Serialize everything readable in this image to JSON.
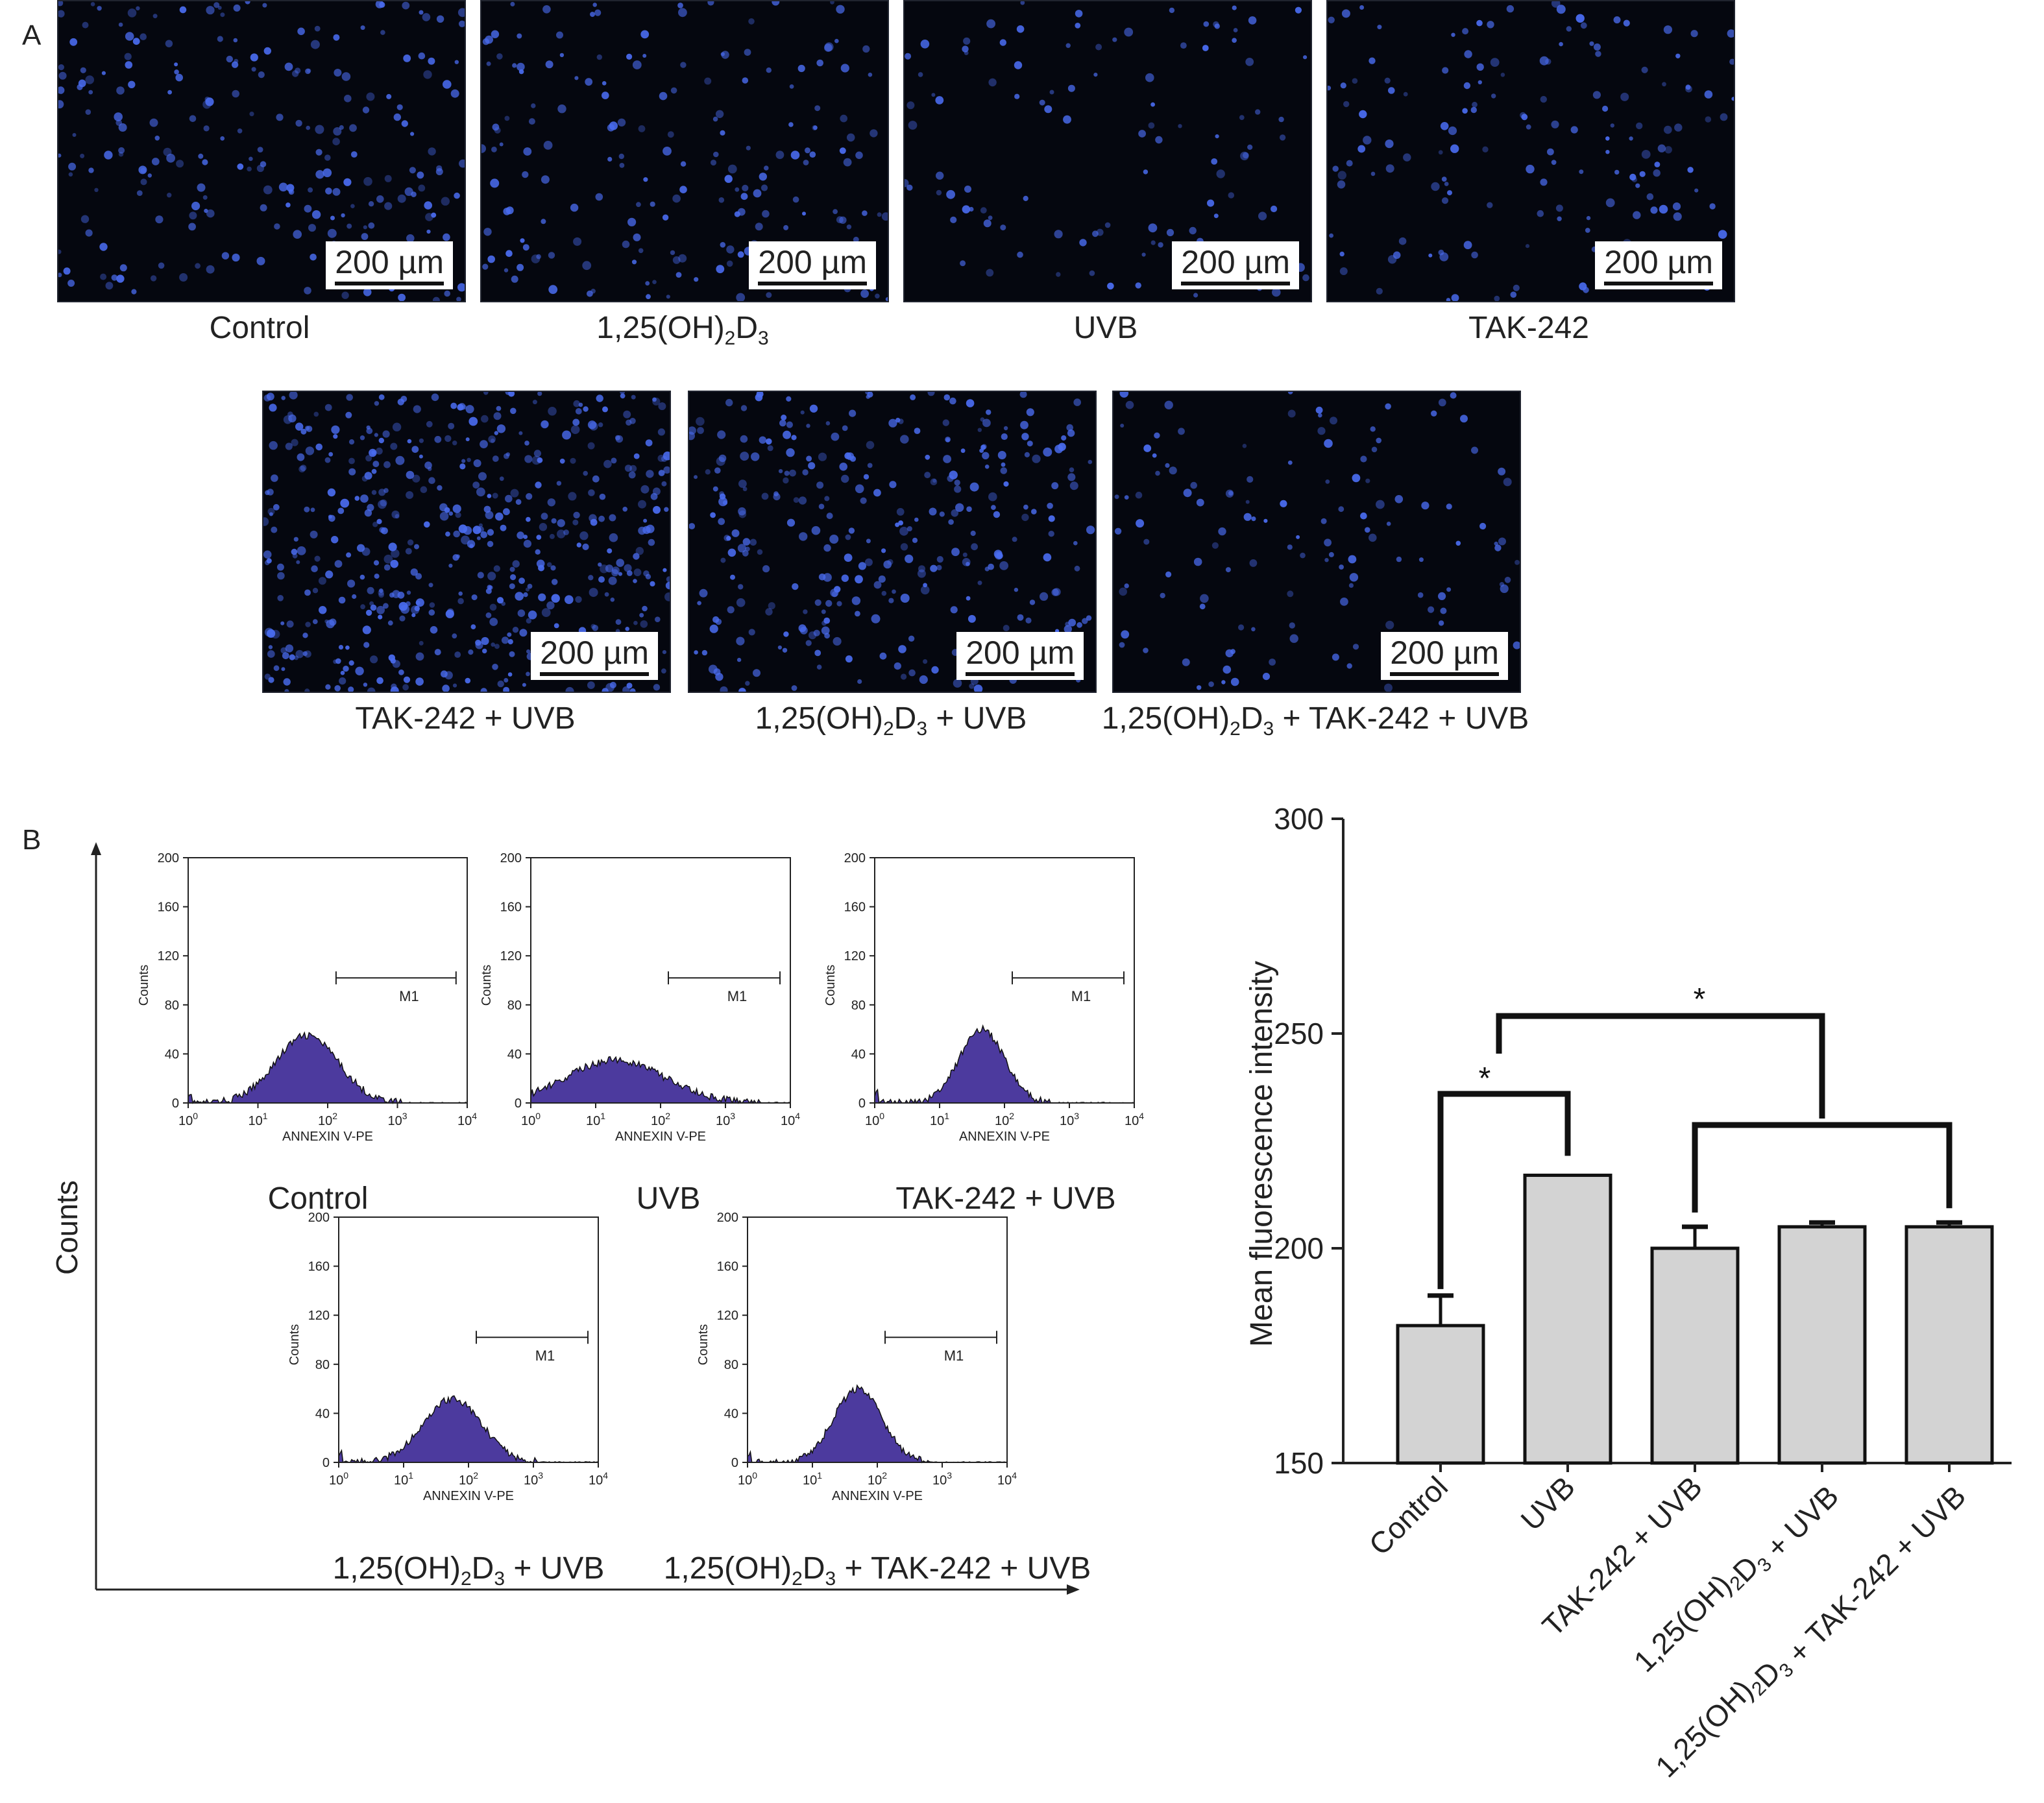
{
  "panels": {
    "a_label": "A",
    "b_label": "B"
  },
  "scale_bar_text": "200 µm",
  "micrographs": [
    {
      "name": "Control",
      "cap_main": "Control",
      "cap_sub": "",
      "cap_tail": ""
    },
    {
      "name": "1,25(OH)2D3",
      "cap_main": "1,25(OH)",
      "cap_sub": "2",
      "cap_tail": "D",
      "cap_sub2": "3",
      "cap_tail2": ""
    },
    {
      "name": "UVB",
      "cap_main": "UVB",
      "cap_sub": "",
      "cap_tail": ""
    },
    {
      "name": "TAK-242",
      "cap_main": "TAK-242",
      "cap_sub": "",
      "cap_tail": ""
    },
    {
      "name": "TAK-242 + UVB",
      "cap_main": "TAK-242 + UVB",
      "cap_sub": "",
      "cap_tail": ""
    },
    {
      "name": "1,25(OH)2D3 + UVB",
      "cap_main": "1,25(OH)",
      "cap_sub": "2",
      "cap_tail": "D",
      "cap_sub2": "3",
      "cap_tail2": " + UVB"
    },
    {
      "name": "1,25(OH)2D3 + TAK-242 + UVB",
      "cap_main": "1,25(OH)",
      "cap_sub": "2",
      "cap_tail": "D",
      "cap_sub2": "3",
      "cap_tail2": " + TAK-242 + UVB"
    }
  ],
  "flow": {
    "outer_ylabel": "Counts",
    "inner_ylabel": "Counts",
    "xlabel": "ANNEXIN V-PE",
    "yticks": [
      "0",
      "40",
      "80",
      "120",
      "160",
      "200"
    ],
    "xticks": [
      {
        "b": "10",
        "e": "0"
      },
      {
        "b": "10",
        "e": "1"
      },
      {
        "b": "10",
        "e": "2"
      },
      {
        "b": "10",
        "e": "3"
      },
      {
        "b": "10",
        "e": "4"
      }
    ],
    "marker_label": "M1",
    "histograms": [
      {
        "name": "Control",
        "peak_log": 1.7,
        "peak": 55,
        "width": 0.45
      },
      {
        "name": "UVB",
        "peak_log": 1.3,
        "peak": 35,
        "width": 0.75
      },
      {
        "name": "TAK-242 + UVB",
        "peak_log": 1.65,
        "peak": 60,
        "width": 0.35
      },
      {
        "name": "1,25(OH)2D3 + UVB",
        "peak_log": 1.75,
        "peak": 52,
        "width": 0.45
      },
      {
        "name": "1,25(OH)2D3 + TAK-242 + UVB",
        "peak_log": 1.7,
        "peak": 60,
        "width": 0.37
      }
    ],
    "captions": [
      {
        "main": "Control"
      },
      {
        "main": "UVB"
      },
      {
        "main": "TAK-242 + UVB"
      },
      {
        "main": "1,25(OH)",
        "sub": "2",
        "tail": "D",
        "sub2": "3",
        "tail2": " + UVB"
      },
      {
        "main": "1,25(OH)",
        "sub": "2",
        "tail": "D",
        "sub2": "3",
        "tail2": " + TAK-242 + UVB"
      }
    ]
  },
  "chart_data": {
    "type": "bar",
    "categories": [
      "Control",
      "UVB",
      "TAK-242 + UVB",
      "1,25(OH)2D3 + UVB",
      "1,25(OH)2D3 + TAK-242 + UVB"
    ],
    "category_parts": [
      {
        "main": "Control"
      },
      {
        "main": "UVB"
      },
      {
        "main": "TAK-242 + UVB"
      },
      {
        "main": "1,25(OH)",
        "sub": "2",
        "tail": "D",
        "sub2": "3",
        "tail2": " + UVB"
      },
      {
        "main": "1,25(OH)",
        "sub": "2",
        "tail": "D",
        "sub2": "3",
        "tail2": " + TAK-242 + UVB"
      }
    ],
    "values": [
      182,
      217,
      200,
      205,
      205
    ],
    "errors": [
      7,
      0,
      5,
      1,
      1
    ],
    "ylabel": "Mean fluorescence intensity",
    "ylim": [
      150,
      300
    ],
    "yticks": [
      "150",
      "200",
      "250",
      "300"
    ],
    "bar_color": "#d3d3d3",
    "significance": [
      {
        "label": "*",
        "from": "Control",
        "to": "UVB"
      },
      {
        "label": "*",
        "from": "Control vs UVB",
        "to": "Treatment groups"
      }
    ]
  }
}
